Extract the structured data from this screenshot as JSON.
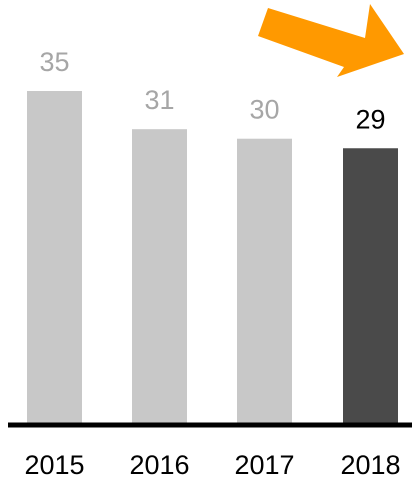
{
  "chart_data": {
    "type": "bar",
    "categories": [
      "2015",
      "2016",
      "2017",
      "2018"
    ],
    "values": [
      35,
      31,
      30,
      29
    ],
    "title": "",
    "xlabel": "",
    "ylabel": "",
    "ylim": [
      0,
      35
    ],
    "grid": false,
    "legend": "none",
    "highlight_index": 3,
    "trend_arrow": "down-right",
    "colors": {
      "bar": "#c8c8c8",
      "bar_highlight": "#4a4a4a",
      "value_label": "#a6a6a6",
      "value_label_highlight": "#000000",
      "axis": "#000000",
      "arrow": "#ff9900"
    }
  }
}
